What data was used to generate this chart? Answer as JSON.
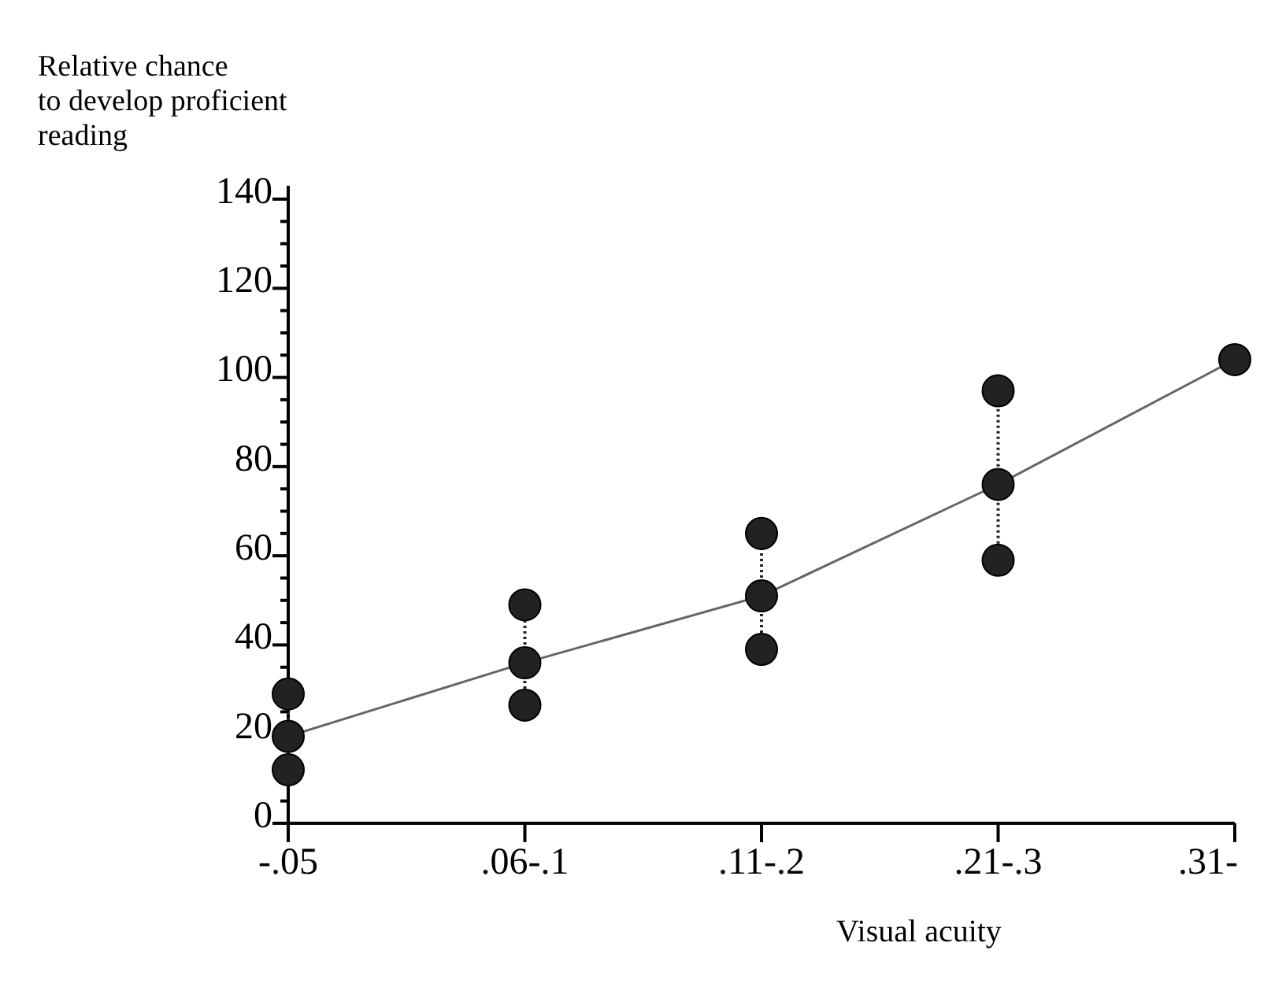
{
  "chart_data": {
    "type": "line",
    "ylabel": "Relative chance\nto develop proficient\nreading",
    "xlabel": "Visual acuity",
    "categories": [
      "-.05",
      ".06-.1",
      ".11-.2",
      ".21-.3",
      ".31-"
    ],
    "series": [
      {
        "color": "#222222",
        "values": [
          19.5,
          36,
          51,
          76,
          104
        ]
      },
      {
        "type": "scatter",
        "color": "#222222",
        "values": [
          12,
          26.5,
          39,
          59,
          null
        ]
      },
      {
        "type": "scatter",
        "color": "#222222",
        "values": [
          29,
          49,
          65,
          97,
          null
        ]
      }
    ],
    "ylim": [
      0,
      143
    ],
    "yticks": [
      0,
      {
        "value": 5,
        "label": null
      },
      {
        "value": 10,
        "label": null
      },
      {
        "value": 15,
        "label": null
      },
      20,
      {
        "value": 25,
        "label": null
      },
      {
        "value": 30,
        "label": null
      },
      {
        "value": 35,
        "label": null
      },
      40,
      {
        "value": 45,
        "label": null
      },
      {
        "value": 50,
        "label": null
      },
      {
        "value": 55,
        "label": null
      },
      60,
      {
        "value": 65,
        "label": null
      },
      {
        "value": 70,
        "label": null
      },
      {
        "value": 75,
        "label": null
      },
      80,
      {
        "value": 85,
        "label": null
      },
      {
        "value": 90,
        "label": null
      },
      {
        "value": 95,
        "label": null
      },
      100,
      {
        "value": 105,
        "label": null
      },
      {
        "value": 110,
        "label": null
      },
      {
        "value": 115,
        "label": null
      },
      120,
      {
        "value": 125,
        "label": null
      },
      {
        "value": 130,
        "label": null
      },
      {
        "value": 135,
        "label": null
      },
      140
    ],
    "grid": false,
    "marker": "circle",
    "line_style": "solid"
  }
}
